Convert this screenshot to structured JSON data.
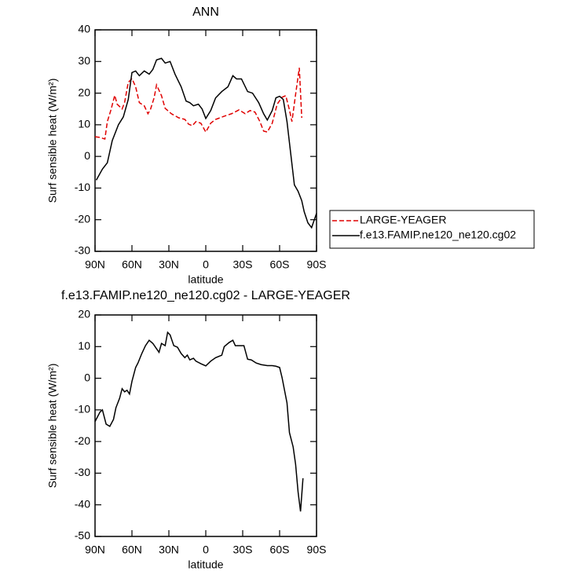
{
  "chart_data": [
    {
      "type": "line",
      "title": "ANN",
      "xlabel": "latitude",
      "ylabel": "Surf sensible heat (W/m²)",
      "xlim": [
        90,
        -90
      ],
      "xticks": [
        {
          "value": 90,
          "label": "90N"
        },
        {
          "value": 60,
          "label": "60N"
        },
        {
          "value": 30,
          "label": "30N"
        },
        0,
        {
          "value": -30,
          "label": "30S"
        },
        {
          "value": -60,
          "label": "60S"
        },
        {
          "value": -90,
          "label": "90S"
        }
      ],
      "ylim": [
        -30,
        40
      ],
      "yticks": [
        -30,
        -20,
        -10,
        0,
        10,
        20,
        30,
        40
      ],
      "legend": "right",
      "series": [
        {
          "name": "LARGE-YEAGER",
          "color": "#e00000",
          "style": "dashed",
          "x": [
            90,
            86,
            82,
            80,
            77,
            74,
            72,
            68,
            66,
            63,
            60,
            57,
            54,
            50,
            47,
            45,
            42,
            40,
            36,
            33,
            28,
            22,
            17,
            14,
            11,
            8,
            4,
            0,
            -4,
            -8,
            -15,
            -21,
            -27,
            -32,
            -36,
            -40,
            -44,
            -47,
            -50,
            -54,
            -58,
            -62,
            -65,
            -68,
            -70,
            -73,
            -76,
            -78
          ],
          "values": [
            6.2,
            6,
            5.5,
            11,
            14.8,
            19.3,
            16.5,
            15,
            17,
            23.4,
            24.6,
            22,
            17,
            16,
            13.5,
            14.8,
            18.5,
            22.6,
            19.2,
            15.2,
            13.5,
            12.2,
            11.7,
            10.2,
            9.7,
            11,
            10.5,
            7.7,
            10.5,
            11.7,
            12.7,
            13.5,
            14.7,
            13.5,
            14.5,
            14,
            11,
            8,
            7.7,
            10.5,
            16.5,
            18.7,
            19.2,
            14.7,
            11,
            19.6,
            28,
            12.2
          ]
        },
        {
          "name": "f.e13.FAMIP.ne120_ne120.cg02",
          "color": "#000000",
          "style": "solid",
          "x": [
            89,
            84,
            80,
            76,
            71,
            67,
            63,
            60,
            57,
            54,
            50,
            46,
            43,
            40,
            36,
            33,
            29,
            25,
            20,
            16,
            13,
            10,
            6,
            3,
            0,
            -4,
            -8,
            -13,
            -18,
            -22,
            -25,
            -29,
            -34,
            -38,
            -43,
            -47,
            -50,
            -54,
            -57,
            -60,
            -63,
            -66,
            -69,
            -72,
            -75,
            -78,
            -80,
            -83,
            -86,
            -90
          ],
          "values": [
            -7.5,
            -4,
            -2,
            5,
            10,
            12.5,
            18,
            26.5,
            27,
            25.5,
            27,
            26,
            27.5,
            30.5,
            31,
            29.5,
            30,
            26,
            22,
            17.5,
            17,
            16,
            16.5,
            15,
            12,
            14.5,
            18.5,
            20.5,
            22,
            25.5,
            24.5,
            24.5,
            20.5,
            20,
            17,
            13.5,
            11.5,
            14.5,
            18.5,
            19,
            18,
            11,
            1,
            -9,
            -11,
            -14,
            -17.5,
            -21,
            -22.5,
            -18
          ]
        }
      ]
    },
    {
      "type": "line",
      "title": "f.e13.FAMIP.ne120_ne120.cg02 - LARGE-YEAGER",
      "xlabel": "latitude",
      "ylabel": "Surf sensible heat (W/m²)",
      "xlim": [
        90,
        -90
      ],
      "xticks": [
        {
          "value": 90,
          "label": "90N"
        },
        {
          "value": 60,
          "label": "60N"
        },
        {
          "value": 30,
          "label": "30N"
        },
        0,
        {
          "value": -30,
          "label": "30S"
        },
        {
          "value": -60,
          "label": "60S"
        },
        {
          "value": -90,
          "label": "90S"
        }
      ],
      "ylim": [
        -50,
        20
      ],
      "yticks": [
        -50,
        -40,
        -30,
        -20,
        -10,
        0,
        10,
        20
      ],
      "series": [
        {
          "color": "#000000",
          "style": "solid",
          "x": [
            90,
            86,
            84,
            81,
            78,
            75,
            73,
            70,
            68,
            66,
            64,
            62,
            60,
            57,
            55,
            52,
            49,
            46,
            43,
            40,
            38,
            36,
            33,
            31,
            29,
            26,
            23,
            20,
            17,
            15,
            13,
            10,
            8,
            4,
            0,
            -4,
            -8,
            -13,
            -15,
            -19,
            -22,
            -24,
            -27,
            -31,
            -34,
            -37,
            -41,
            -45,
            -50,
            -54,
            -57,
            -60,
            -62,
            -66,
            -68,
            -71,
            -73,
            -75,
            -77,
            -79
          ],
          "values": [
            -13.7,
            -10.7,
            -10,
            -14.5,
            -15.2,
            -13,
            -9.3,
            -6.3,
            -3.3,
            -4.3,
            -3.8,
            -5,
            -1,
            3.4,
            4.9,
            7.8,
            10.3,
            12,
            11,
            9.3,
            8.2,
            11,
            10.3,
            14.5,
            13.7,
            10.3,
            9.8,
            7.8,
            6.5,
            7.3,
            5.8,
            6.3,
            5.4,
            4.6,
            3.9,
            5.4,
            6.5,
            7.3,
            10,
            11.3,
            12,
            10.3,
            10.3,
            10.3,
            6,
            5.8,
            4.8,
            4.3,
            4,
            4,
            3.8,
            3.4,
            0.2,
            -7.8,
            -17.2,
            -21.7,
            -27.2,
            -35.9,
            -42.1,
            -31.6
          ]
        }
      ]
    }
  ]
}
